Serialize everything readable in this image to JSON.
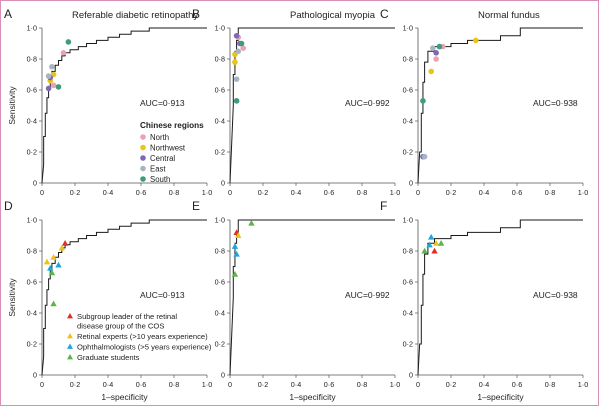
{
  "chart_data": [
    {
      "id": "A",
      "type": "line",
      "panel_letter": "A",
      "title": "Referable diabetic retinopathy",
      "xlabel": "",
      "ylabel": "Sensitivity",
      "xlim": [
        0,
        1
      ],
      "ylim": [
        0,
        1
      ],
      "x_ticks": [
        "0",
        "0·2",
        "0·4",
        "0·6",
        "0·8",
        "1·0"
      ],
      "y_ticks": [
        "0",
        "0·2",
        "0·4",
        "0·6",
        "0·8",
        "1·0"
      ],
      "auc_label": "AUC=0·913",
      "roc_curve": [
        [
          0,
          0
        ],
        [
          0.01,
          0.12
        ],
        [
          0.01,
          0.3
        ],
        [
          0.02,
          0.3
        ],
        [
          0.02,
          0.45
        ],
        [
          0.03,
          0.45
        ],
        [
          0.03,
          0.55
        ],
        [
          0.04,
          0.55
        ],
        [
          0.04,
          0.62
        ],
        [
          0.05,
          0.62
        ],
        [
          0.05,
          0.68
        ],
        [
          0.06,
          0.68
        ],
        [
          0.06,
          0.72
        ],
        [
          0.08,
          0.72
        ],
        [
          0.08,
          0.76
        ],
        [
          0.1,
          0.76
        ],
        [
          0.1,
          0.79
        ],
        [
          0.12,
          0.79
        ],
        [
          0.12,
          0.82
        ],
        [
          0.14,
          0.82
        ],
        [
          0.14,
          0.84
        ],
        [
          0.17,
          0.84
        ],
        [
          0.17,
          0.86
        ],
        [
          0.22,
          0.86
        ],
        [
          0.22,
          0.88
        ],
        [
          0.27,
          0.88
        ],
        [
          0.27,
          0.9
        ],
        [
          0.33,
          0.9
        ],
        [
          0.33,
          0.92
        ],
        [
          0.4,
          0.92
        ],
        [
          0.4,
          0.94
        ],
        [
          0.47,
          0.94
        ],
        [
          0.47,
          0.96
        ],
        [
          0.54,
          0.96
        ],
        [
          0.54,
          0.98
        ],
        [
          0.65,
          0.98
        ],
        [
          0.65,
          1.0
        ],
        [
          1.0,
          1.0
        ]
      ],
      "points": [
        {
          "group": "North",
          "x": 0.07,
          "y": 0.63
        },
        {
          "group": "North",
          "x": 0.13,
          "y": 0.84
        },
        {
          "group": "Northwest",
          "x": 0.05,
          "y": 0.66
        },
        {
          "group": "Northwest",
          "x": 0.07,
          "y": 0.7
        },
        {
          "group": "Central",
          "x": 0.04,
          "y": 0.61
        },
        {
          "group": "Central",
          "x": 0.05,
          "y": 0.68
        },
        {
          "group": "East",
          "x": 0.06,
          "y": 0.75
        },
        {
          "group": "East",
          "x": 0.04,
          "y": 0.69
        },
        {
          "group": "South",
          "x": 0.16,
          "y": 0.91
        },
        {
          "group": "South",
          "x": 0.1,
          "y": 0.62
        }
      ],
      "legend_title": "Chinese regions",
      "legend": [
        {
          "name": "North",
          "color": "#e8a3b5",
          "marker": "circle"
        },
        {
          "name": "Northwest",
          "color": "#e8c619",
          "marker": "circle"
        },
        {
          "name": "Central",
          "color": "#8068b6",
          "marker": "circle"
        },
        {
          "name": "East",
          "color": "#a7b4c2",
          "marker": "circle"
        },
        {
          "name": "South",
          "color": "#3f9b78",
          "marker": "circle"
        }
      ],
      "legend_position": "lower-right"
    },
    {
      "id": "B",
      "type": "line",
      "panel_letter": "B",
      "title": "Pathological myopia",
      "xlabel": "",
      "ylabel": "",
      "xlim": [
        0,
        1
      ],
      "ylim": [
        0,
        1
      ],
      "x_ticks": [
        "0",
        "0·2",
        "0·4",
        "0·6",
        "0·8",
        "1·0"
      ],
      "y_ticks": [
        "0",
        "0·2",
        "0·4",
        "0·6",
        "0·8",
        "1·0"
      ],
      "auc_label": "AUC=0·992",
      "roc_curve": [
        [
          0,
          0
        ],
        [
          0.02,
          0.5
        ],
        [
          0.02,
          0.7
        ],
        [
          0.03,
          0.7
        ],
        [
          0.03,
          0.85
        ],
        [
          0.04,
          0.85
        ],
        [
          0.04,
          0.92
        ],
        [
          0.05,
          0.92
        ],
        [
          0.05,
          1.0
        ],
        [
          1.0,
          1.0
        ]
      ],
      "points": [
        {
          "group": "North",
          "x": 0.05,
          "y": 0.94
        },
        {
          "group": "North",
          "x": 0.08,
          "y": 0.87
        },
        {
          "group": "Northwest",
          "x": 0.03,
          "y": 0.83
        },
        {
          "group": "Northwest",
          "x": 0.03,
          "y": 0.78
        },
        {
          "group": "Central",
          "x": 0.06,
          "y": 0.9
        },
        {
          "group": "Central",
          "x": 0.04,
          "y": 0.95
        },
        {
          "group": "East",
          "x": 0.04,
          "y": 0.67
        },
        {
          "group": "East",
          "x": 0.05,
          "y": 0.85
        },
        {
          "group": "South",
          "x": 0.04,
          "y": 0.53
        },
        {
          "group": "South",
          "x": 0.07,
          "y": 0.9
        }
      ]
    },
    {
      "id": "C",
      "type": "line",
      "panel_letter": "C",
      "title": "Normal fundus",
      "xlabel": "",
      "ylabel": "",
      "xlim": [
        0,
        1
      ],
      "ylim": [
        0,
        1
      ],
      "x_ticks": [
        "0",
        "0·2",
        "0·4",
        "0·6",
        "0·8",
        "1·0"
      ],
      "y_ticks": [
        "0",
        "0·2",
        "0·4",
        "0·6",
        "0·8",
        "1·0"
      ],
      "auc_label": "AUC=0·938",
      "roc_curve": [
        [
          0,
          0
        ],
        [
          0.01,
          0.2
        ],
        [
          0.02,
          0.2
        ],
        [
          0.02,
          0.45
        ],
        [
          0.03,
          0.45
        ],
        [
          0.03,
          0.65
        ],
        [
          0.04,
          0.65
        ],
        [
          0.04,
          0.78
        ],
        [
          0.06,
          0.78
        ],
        [
          0.06,
          0.85
        ],
        [
          0.1,
          0.85
        ],
        [
          0.1,
          0.88
        ],
        [
          0.2,
          0.88
        ],
        [
          0.2,
          0.9
        ],
        [
          0.3,
          0.9
        ],
        [
          0.3,
          0.92
        ],
        [
          0.5,
          0.92
        ],
        [
          0.5,
          0.95
        ],
        [
          0.62,
          0.95
        ],
        [
          0.62,
          1.0
        ],
        [
          1.0,
          1.0
        ]
      ],
      "points": [
        {
          "group": "North",
          "x": 0.11,
          "y": 0.8
        },
        {
          "group": "North",
          "x": 0.15,
          "y": 0.88
        },
        {
          "group": "Northwest",
          "x": 0.35,
          "y": 0.92
        },
        {
          "group": "Northwest",
          "x": 0.08,
          "y": 0.72
        },
        {
          "group": "Central",
          "x": 0.11,
          "y": 0.84
        },
        {
          "group": "Central",
          "x": 0.03,
          "y": 0.17
        },
        {
          "group": "East",
          "x": 0.09,
          "y": 0.87
        },
        {
          "group": "East",
          "x": 0.04,
          "y": 0.17
        },
        {
          "group": "South",
          "x": 0.03,
          "y": 0.53
        },
        {
          "group": "South",
          "x": 0.13,
          "y": 0.88
        }
      ]
    },
    {
      "id": "D",
      "type": "line",
      "panel_letter": "D",
      "title": "",
      "xlabel": "1–specificity",
      "ylabel": "Sensitivity",
      "xlim": [
        0,
        1
      ],
      "ylim": [
        0,
        1
      ],
      "x_ticks": [
        "0",
        "0·2",
        "0·4",
        "0·6",
        "0·8",
        "1·0"
      ],
      "y_ticks": [
        "0",
        "0·2",
        "0·4",
        "0·6",
        "0·8",
        "1·0"
      ],
      "auc_label": "AUC=0·913",
      "roc_curve": [
        [
          0,
          0
        ],
        [
          0.01,
          0.12
        ],
        [
          0.01,
          0.3
        ],
        [
          0.02,
          0.3
        ],
        [
          0.02,
          0.45
        ],
        [
          0.03,
          0.45
        ],
        [
          0.03,
          0.55
        ],
        [
          0.04,
          0.55
        ],
        [
          0.04,
          0.62
        ],
        [
          0.05,
          0.62
        ],
        [
          0.05,
          0.68
        ],
        [
          0.06,
          0.68
        ],
        [
          0.06,
          0.72
        ],
        [
          0.08,
          0.72
        ],
        [
          0.08,
          0.76
        ],
        [
          0.1,
          0.76
        ],
        [
          0.1,
          0.79
        ],
        [
          0.12,
          0.79
        ],
        [
          0.12,
          0.82
        ],
        [
          0.14,
          0.82
        ],
        [
          0.14,
          0.84
        ],
        [
          0.17,
          0.84
        ],
        [
          0.17,
          0.86
        ],
        [
          0.22,
          0.86
        ],
        [
          0.22,
          0.88
        ],
        [
          0.27,
          0.88
        ],
        [
          0.27,
          0.9
        ],
        [
          0.33,
          0.9
        ],
        [
          0.33,
          0.92
        ],
        [
          0.4,
          0.92
        ],
        [
          0.4,
          0.94
        ],
        [
          0.47,
          0.94
        ],
        [
          0.47,
          0.96
        ],
        [
          0.54,
          0.96
        ],
        [
          0.54,
          0.98
        ],
        [
          0.65,
          0.98
        ],
        [
          0.65,
          1.0
        ],
        [
          1.0,
          1.0
        ]
      ],
      "points": [
        {
          "group": "Subgroup leader of the retinal disease group of the COS",
          "x": 0.14,
          "y": 0.85
        },
        {
          "group": "Retinal experts (>10 years experience)",
          "x": 0.03,
          "y": 0.73
        },
        {
          "group": "Retinal experts (>10 years experience)",
          "x": 0.07,
          "y": 0.76
        },
        {
          "group": "Retinal experts (>10 years experience)",
          "x": 0.12,
          "y": 0.82
        },
        {
          "group": "Ophthalmologists (>5 years experience)",
          "x": 0.1,
          "y": 0.71
        },
        {
          "group": "Ophthalmologists (>5 years experience)",
          "x": 0.05,
          "y": 0.69
        },
        {
          "group": "Graduate students",
          "x": 0.06,
          "y": 0.66
        },
        {
          "group": "Graduate students",
          "x": 0.07,
          "y": 0.46
        }
      ],
      "legend": [
        {
          "name": "Subgroup leader of the retinal disease group of the COS",
          "lines": [
            "Subgroup leader of the retinal",
            "disease group of the COS"
          ],
          "color": "#e02f26",
          "marker": "triangle"
        },
        {
          "name": "Retinal experts (>10 years experience)",
          "lines": [
            "Retinal experts (>10 years experience)"
          ],
          "color": "#ecc31a",
          "marker": "triangle"
        },
        {
          "name": "Ophthalmologists (>5 years experience)",
          "lines": [
            "Ophthalmologists (>5 years experience)"
          ],
          "color": "#1fa6d6",
          "marker": "triangle"
        },
        {
          "name": "Graduate students",
          "lines": [
            "Graduate students"
          ],
          "color": "#5cb54a",
          "marker": "triangle"
        }
      ],
      "legend_position": "lower-right"
    },
    {
      "id": "E",
      "type": "line",
      "panel_letter": "E",
      "title": "",
      "xlabel": "1–specificity",
      "ylabel": "",
      "xlim": [
        0,
        1
      ],
      "ylim": [
        0,
        1
      ],
      "x_ticks": [
        "0",
        "0·2",
        "0·4",
        "0·6",
        "0·8",
        "1·0"
      ],
      "y_ticks": [
        "0",
        "0·2",
        "0·4",
        "0·6",
        "0·8",
        "1·0"
      ],
      "auc_label": "AUC=0·992",
      "roc_curve": [
        [
          0,
          0
        ],
        [
          0.02,
          0.5
        ],
        [
          0.02,
          0.7
        ],
        [
          0.03,
          0.7
        ],
        [
          0.03,
          0.85
        ],
        [
          0.04,
          0.85
        ],
        [
          0.04,
          0.92
        ],
        [
          0.05,
          0.92
        ],
        [
          0.05,
          1.0
        ],
        [
          1.0,
          1.0
        ]
      ],
      "points": [
        {
          "group": "Subgroup leader of the retinal disease group of the COS",
          "x": 0.04,
          "y": 0.92
        },
        {
          "group": "Retinal experts (>10 years experience)",
          "x": 0.05,
          "y": 0.9
        },
        {
          "group": "Ophthalmologists (>5 years experience)",
          "x": 0.03,
          "y": 0.83
        },
        {
          "group": "Ophthalmologists (>5 years experience)",
          "x": 0.04,
          "y": 0.78
        },
        {
          "group": "Graduate students",
          "x": 0.13,
          "y": 0.98
        },
        {
          "group": "Graduate students",
          "x": 0.03,
          "y": 0.65
        }
      ]
    },
    {
      "id": "F",
      "type": "line",
      "panel_letter": "F",
      "title": "",
      "xlabel": "1–specificity",
      "ylabel": "",
      "xlim": [
        0,
        1
      ],
      "ylim": [
        0,
        1
      ],
      "x_ticks": [
        "0",
        "0·2",
        "0·4",
        "0·6",
        "0·8",
        "1·0"
      ],
      "y_ticks": [
        "0",
        "0·2",
        "0·4",
        "0·6",
        "0·8",
        "1·0"
      ],
      "auc_label": "AUC=0·938",
      "roc_curve": [
        [
          0,
          0
        ],
        [
          0.01,
          0.2
        ],
        [
          0.02,
          0.2
        ],
        [
          0.02,
          0.45
        ],
        [
          0.03,
          0.45
        ],
        [
          0.03,
          0.65
        ],
        [
          0.04,
          0.65
        ],
        [
          0.04,
          0.78
        ],
        [
          0.06,
          0.78
        ],
        [
          0.06,
          0.85
        ],
        [
          0.1,
          0.85
        ],
        [
          0.1,
          0.88
        ],
        [
          0.2,
          0.88
        ],
        [
          0.2,
          0.9
        ],
        [
          0.3,
          0.9
        ],
        [
          0.3,
          0.92
        ],
        [
          0.5,
          0.92
        ],
        [
          0.5,
          0.95
        ],
        [
          0.62,
          0.95
        ],
        [
          0.62,
          1.0
        ],
        [
          1.0,
          1.0
        ]
      ],
      "points": [
        {
          "group": "Subgroup leader of the retinal disease group of the COS",
          "x": 0.1,
          "y": 0.8
        },
        {
          "group": "Retinal experts (>10 years experience)",
          "x": 0.11,
          "y": 0.85
        },
        {
          "group": "Ophthalmologists (>5 years experience)",
          "x": 0.08,
          "y": 0.89
        },
        {
          "group": "Ophthalmologists (>5 years experience)",
          "x": 0.07,
          "y": 0.84
        },
        {
          "group": "Graduate students",
          "x": 0.04,
          "y": 0.8
        },
        {
          "group": "Graduate students",
          "x": 0.14,
          "y": 0.85
        }
      ]
    }
  ]
}
